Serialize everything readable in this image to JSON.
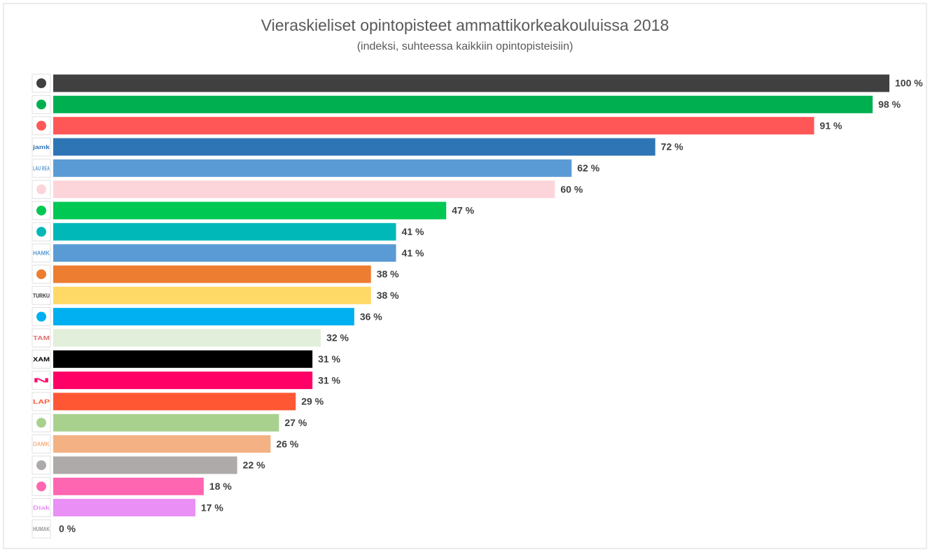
{
  "chart_data": {
    "type": "bar",
    "orientation": "horizontal",
    "title": "Vieraskieliset opintopisteet ammattikorkeakouluissa 2018",
    "subtitle": "(indeksi, suhteessa kaikkiin opintopisteisiin)",
    "categories": [
      null,
      null,
      null,
      "jamk",
      "LAU REA",
      null,
      null,
      null,
      "HAMK",
      null,
      "TURKU",
      null,
      "TAM",
      "XAM",
      "N",
      "LAP",
      null,
      "DAMK",
      null,
      null,
      "Diak",
      "HUMAK"
    ],
    "values": [
      100,
      98,
      91,
      72,
      62,
      60,
      47,
      41,
      41,
      38,
      38,
      36,
      32,
      31,
      31,
      29,
      27,
      26,
      22,
      18,
      17,
      0
    ],
    "value_labels": [
      "100 %",
      "98 %",
      "91 %",
      "72 %",
      "62 %",
      "60 %",
      "47 %",
      "41 %",
      "41 %",
      "38 %",
      "38 %",
      "36 %",
      "32 %",
      "31 %",
      "31 %",
      "29 %",
      "27 %",
      "26 %",
      "22 %",
      "18 %",
      "17 %",
      "0 %"
    ],
    "colors": [
      "#404040",
      "#00b050",
      "#ff5757",
      "#2e75b6",
      "#5b9bd5",
      "#fcd5db",
      "#00c853",
      "#00b8b8",
      "#5b9bd5",
      "#ed7d31",
      "#ffd966",
      "#00b0f0",
      "#e2efda",
      "#000000",
      "#ff0066",
      "#ff5733",
      "#a9d18e",
      "#f4b183",
      "#aeaaaa",
      "#ff66b2",
      "#e98ff5",
      "#999999"
    ],
    "xlim": [
      0,
      100
    ]
  }
}
